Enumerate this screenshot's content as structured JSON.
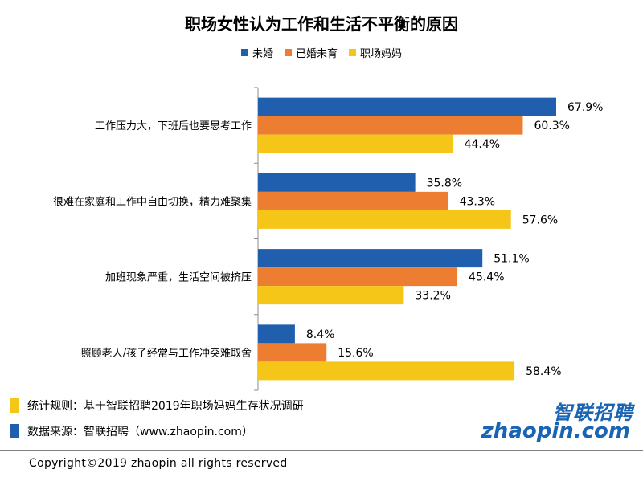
{
  "chart_data": {
    "type": "bar",
    "orientation": "horizontal",
    "title": "职场女性认为工作和生活不平衡的原因",
    "categories": [
      "工作压力大，下班后也要思考工作",
      "很难在家庭和工作中自由切换，精力难聚集",
      "加班现象严重，生活空间被挤压",
      "照顾老人/孩子经常与工作冲突难取舍"
    ],
    "series": [
      {
        "name": "未婚",
        "color": "#1f5fad",
        "values": [
          67.9,
          35.8,
          51.1,
          8.4
        ]
      },
      {
        "name": "已婚未育",
        "color": "#ed7d31",
        "values": [
          60.3,
          43.3,
          45.4,
          15.6
        ]
      },
      {
        "name": "职场妈妈",
        "color": "#f5c518",
        "values": [
          44.4,
          57.6,
          33.2,
          58.4
        ]
      }
    ],
    "value_suffix": "%",
    "xlim": [
      0,
      70
    ],
    "legend_position": "top-center",
    "grid": false
  },
  "notes": [
    {
      "text": "统计规则：基于智联招聘2019年职场妈妈生存状况调研",
      "color": "#f5c518"
    },
    {
      "text": "数据来源：智联招聘（www.zhaopin.com）",
      "color": "#1f5fad"
    }
  ],
  "logo": {
    "cn": "智联招聘",
    "en": "zhaopin.com",
    "color": "#1a64b4"
  },
  "copyright": "Copyright©2019 zhaopin all rights reserved"
}
